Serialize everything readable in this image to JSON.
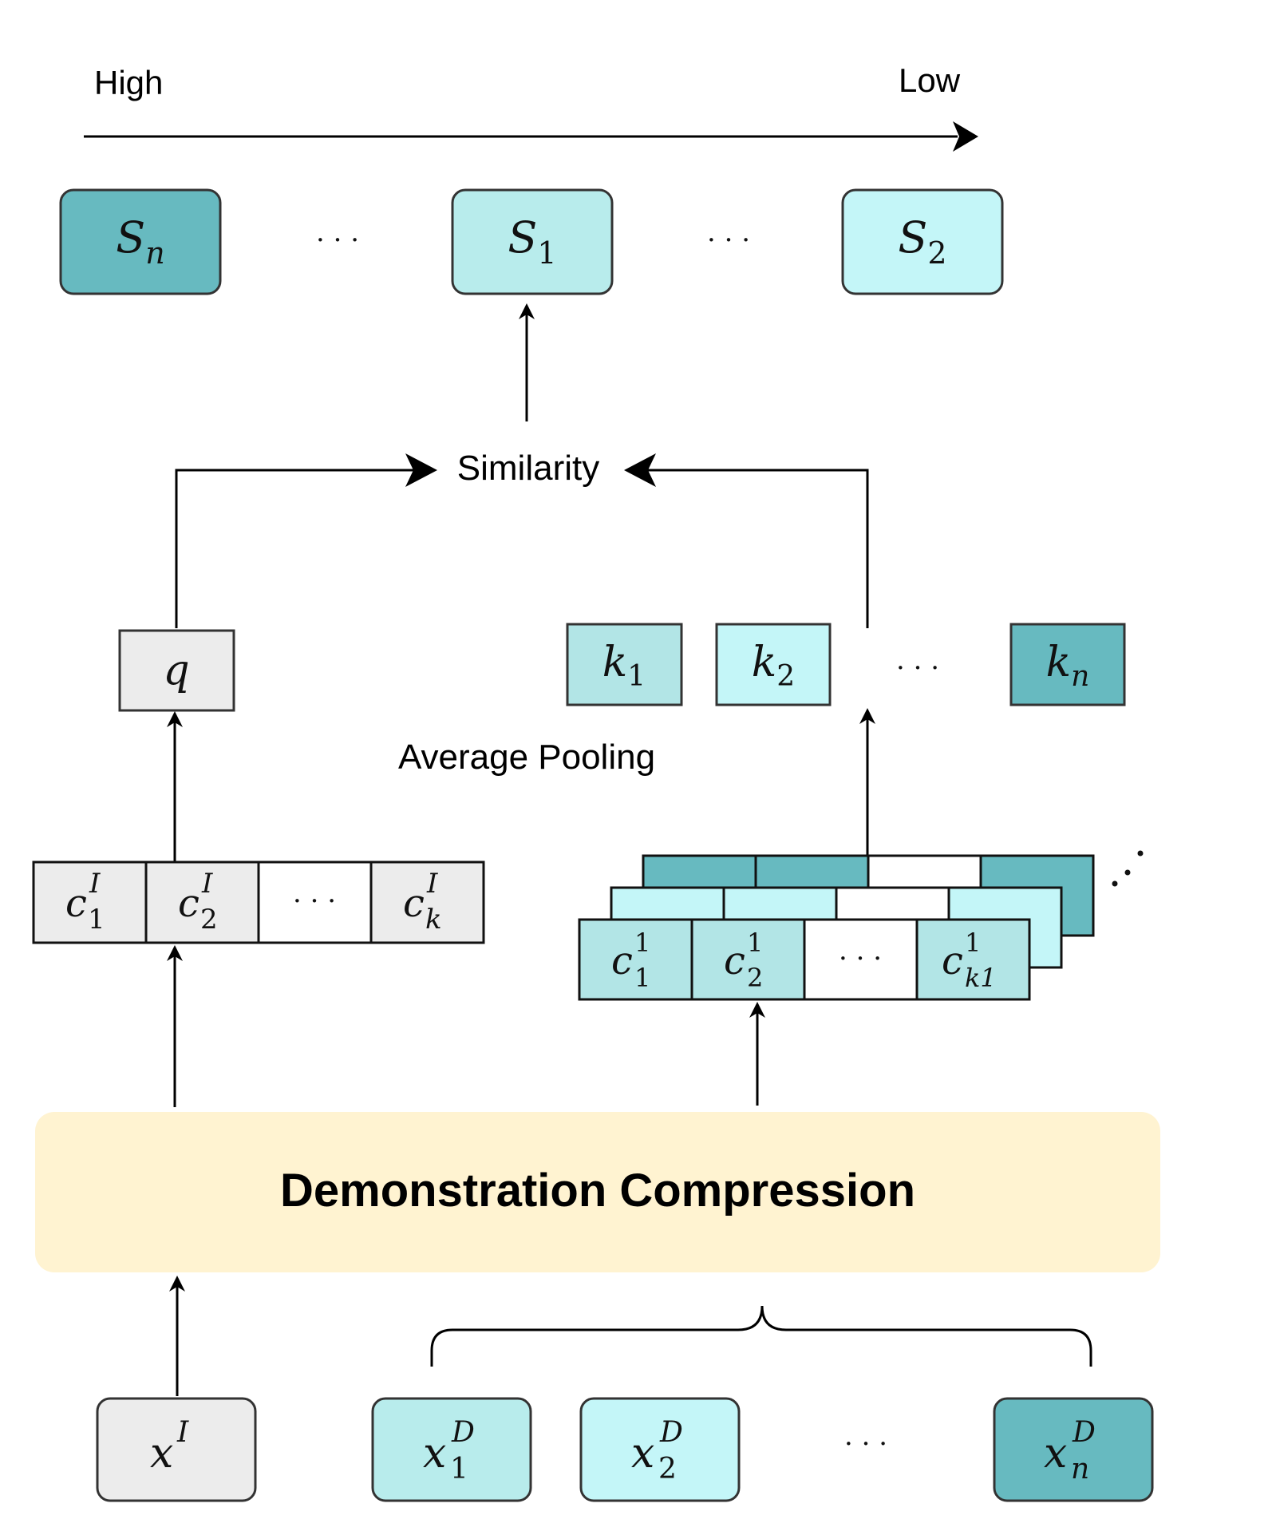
{
  "axis": {
    "high_label": "High",
    "low_label": "Low"
  },
  "ranking": [
    {
      "base": "S",
      "sub": "n",
      "sub_italic": true,
      "color": "#67bac0"
    },
    {
      "base": "S",
      "sub": "1",
      "sub_italic": false,
      "color": "#b8ecec"
    },
    {
      "base": "S",
      "sub": "2",
      "sub_italic": false,
      "color": "#c4f6f8"
    }
  ],
  "ellipsis": "· · ·",
  "similarity_label": "Similarity",
  "average_pooling_label": "Average Pooling",
  "query": {
    "label": "q",
    "color": "#ececec"
  },
  "keys": [
    {
      "base": "k",
      "sub": "1",
      "sub_italic": false,
      "color": "#b2e5e6"
    },
    {
      "base": "k",
      "sub": "2",
      "sub_italic": false,
      "color": "#c4f6f8"
    },
    {
      "base": "k",
      "sub": "n",
      "sub_italic": true,
      "color": "#67bac0"
    }
  ],
  "query_compressed": [
    {
      "base": "c",
      "sub": "1",
      "sup": "I"
    },
    {
      "base": "c",
      "sub": "2",
      "sup": "I"
    },
    {
      "base": "c",
      "sub": "k",
      "sup": "I"
    }
  ],
  "demo_compressed": [
    {
      "base": "c",
      "sub": "1",
      "sup": "1"
    },
    {
      "base": "c",
      "sub": "2",
      "sup": "1"
    },
    {
      "base": "c",
      "sub": "k1",
      "sup": "1"
    }
  ],
  "compression_label": "Demonstration Compression",
  "inputs": {
    "query": {
      "base": "x",
      "sup": "I",
      "color": "#ececec"
    },
    "demos": [
      {
        "base": "x",
        "sub": "1",
        "sup": "D",
        "color": "#b8ecec"
      },
      {
        "base": "x",
        "sub": "2",
        "sup": "D",
        "color": "#c4f6f8"
      },
      {
        "base": "x",
        "sub": "n",
        "sup": "D",
        "color": "#67bac0"
      }
    ]
  },
  "colors": {
    "dark_teal": "#67bac0",
    "light_teal": "#b8ecec",
    "lighter_teal": "#c4f6f8",
    "gray": "#ececec",
    "compression_bg": "#fff3d1",
    "stroke": "#333333"
  }
}
